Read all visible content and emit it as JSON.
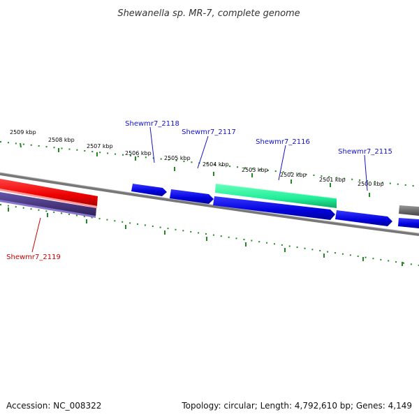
{
  "title": "Shewanella sp. MR-7, complete genome",
  "scale_labels": [
    "2509 kbp",
    "2508 kbp",
    "2507 kbp",
    "2506 kbp",
    "2505 kbp",
    "2504 kbp",
    "2503 kbp",
    "2502 kbp",
    "2501 kbp",
    "2500 kbp"
  ],
  "gene_labels": {
    "shewmr7_2118": "Shewmr7_2118",
    "shewmr7_2117": "Shewmr7_2117",
    "shewmr7_2116": "Shewmr7_2116",
    "shewmr7_2115": "Shewmr7_2115",
    "shewmr7_2119": "Shewmr7_2119"
  },
  "footer": {
    "accession": "Accession: NC_008322",
    "topology": "Topology: circular; Length: 4,792,610 bp; Genes: 4,149"
  },
  "colors": {
    "forward_gene": "#0000dd",
    "highlight_gene": "#33ee99",
    "reverse_gene_red": "#ee1111",
    "reverse_gene_purple": "#443377",
    "backbone": "#777777",
    "ticks": "#228822",
    "label_blue": "#1111cc",
    "label_red": "#cc0000"
  }
}
